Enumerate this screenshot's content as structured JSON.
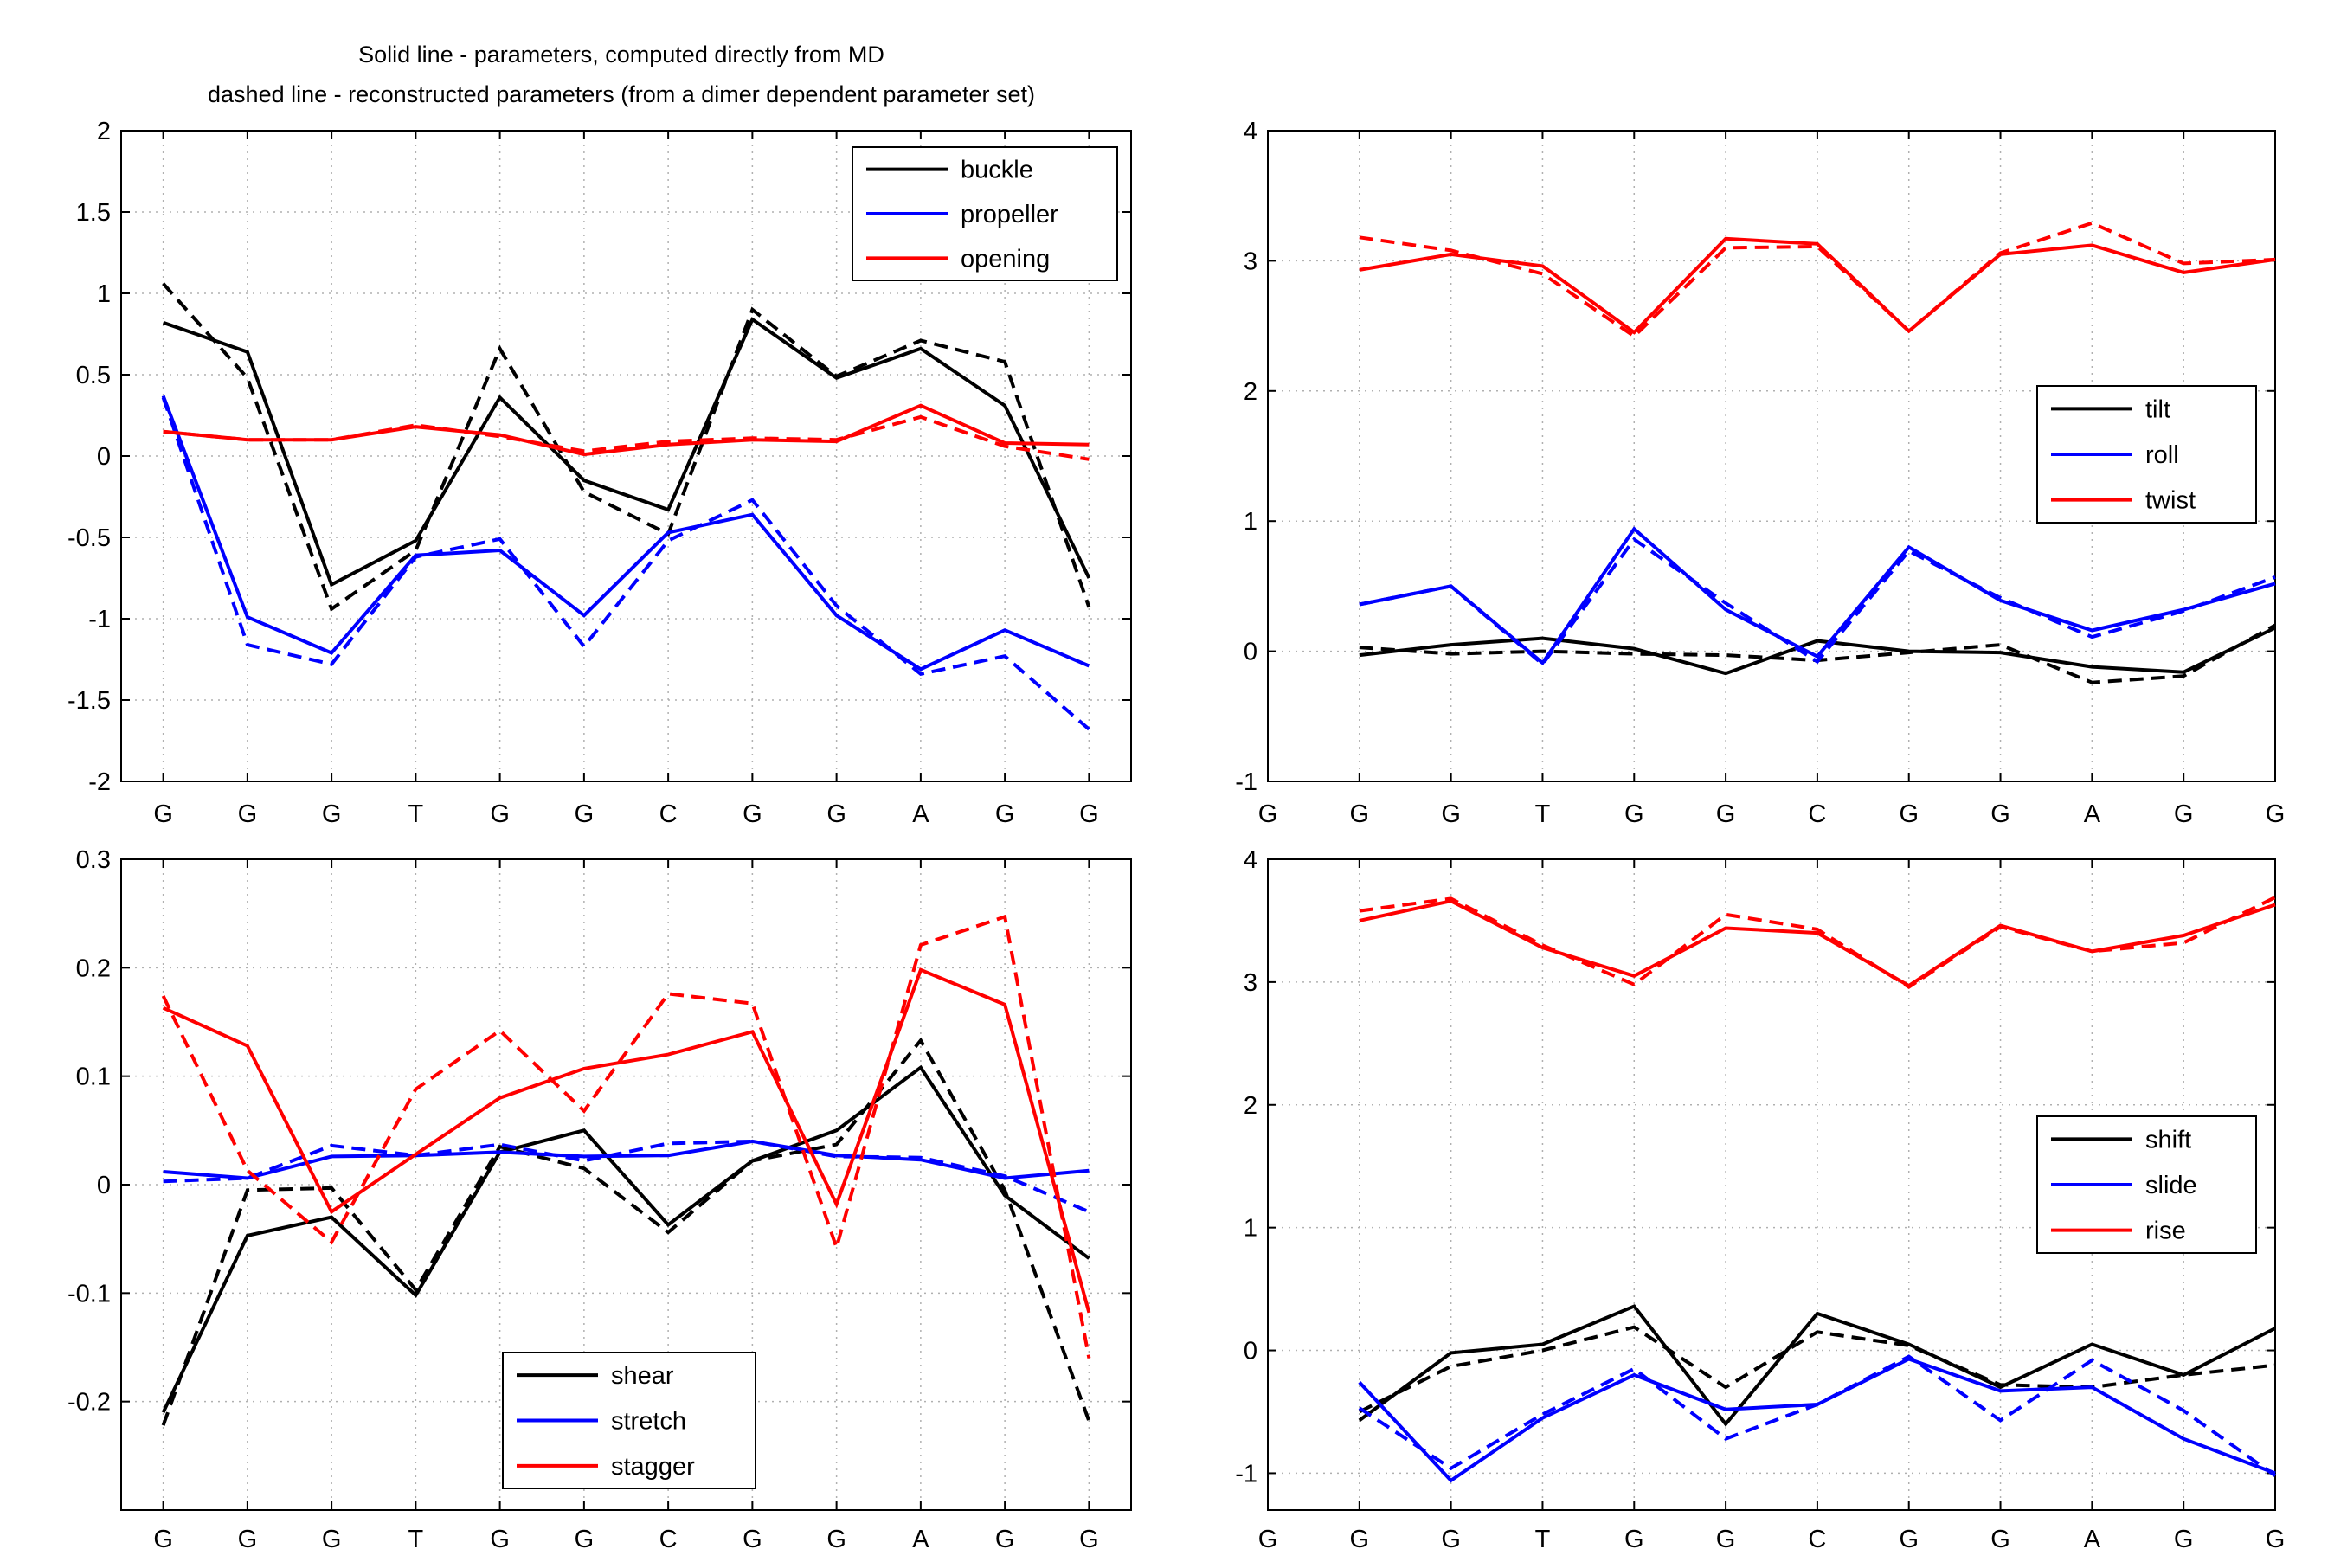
{
  "figure": {
    "title_lines": [
      "Solid line - parameters, computed directly from MD",
      "dashed line - reconstructed parameters (from a dimer dependent parameter set)"
    ]
  },
  "legend_styles": {
    "solid": "parameters, computed directly from MD",
    "dashed": "reconstructed parameters (from a dimer dependent parameter set)"
  },
  "chart_data": [
    {
      "type": "line",
      "id": "top-left",
      "categories": [
        "G",
        "G",
        "G",
        "T",
        "G",
        "G",
        "C",
        "G",
        "G",
        "A",
        "G",
        "G"
      ],
      "ylim": [
        -2,
        2
      ],
      "yticks": [
        -2,
        -1.5,
        -1,
        -0.5,
        0,
        0.5,
        1,
        1.5,
        2
      ],
      "ytick_labels": [
        "-2",
        "-1.5",
        "-1",
        "-0.5",
        "0",
        "0.5",
        "1",
        "1.5",
        "2"
      ],
      "x_index_range": [
        -0.5,
        11.5
      ],
      "grid": true,
      "legend_position": "top-right",
      "series": [
        {
          "name": "buckle",
          "color": "#000000",
          "style": "solid",
          "x": [
            0,
            1,
            2,
            3,
            4,
            5,
            6,
            7,
            8,
            9,
            10,
            11
          ],
          "values": [
            0.82,
            0.64,
            -0.79,
            -0.52,
            0.36,
            -0.15,
            -0.33,
            0.84,
            0.48,
            0.66,
            0.31,
            -0.75
          ]
        },
        {
          "name": "buckle",
          "color": "#000000",
          "style": "dashed",
          "legend": false,
          "x": [
            0,
            1,
            2,
            3,
            4,
            5,
            6,
            7,
            8,
            9,
            10,
            11
          ],
          "values": [
            1.06,
            0.48,
            -0.94,
            -0.58,
            0.66,
            -0.22,
            -0.48,
            0.9,
            0.49,
            0.71,
            0.58,
            -0.93
          ]
        },
        {
          "name": "propeller",
          "color": "#0000ff",
          "style": "solid",
          "x": [
            0,
            1,
            2,
            3,
            4,
            5,
            6,
            7,
            8,
            9,
            10,
            11
          ],
          "values": [
            0.37,
            -0.99,
            -1.21,
            -0.61,
            -0.58,
            -0.98,
            -0.47,
            -0.36,
            -0.98,
            -1.31,
            -1.07,
            -1.29
          ]
        },
        {
          "name": "propeller",
          "color": "#0000ff",
          "style": "dashed",
          "legend": false,
          "x": [
            0,
            1,
            2,
            3,
            4,
            5,
            6,
            7,
            8,
            9,
            10,
            11
          ],
          "values": [
            0.36,
            -1.16,
            -1.28,
            -0.62,
            -0.51,
            -1.17,
            -0.52,
            -0.27,
            -0.92,
            -1.34,
            -1.23,
            -1.68
          ]
        },
        {
          "name": "opening",
          "color": "#ff0000",
          "style": "solid",
          "x": [
            0,
            1,
            2,
            3,
            4,
            5,
            6,
            7,
            8,
            9,
            10,
            11
          ],
          "values": [
            0.15,
            0.1,
            0.1,
            0.18,
            0.13,
            0.01,
            0.07,
            0.1,
            0.09,
            0.31,
            0.08,
            0.07
          ]
        },
        {
          "name": "opening",
          "color": "#ff0000",
          "style": "dashed",
          "legend": false,
          "x": [
            0,
            1,
            2,
            3,
            4,
            5,
            6,
            7,
            8,
            9,
            10,
            11
          ],
          "values": [
            0.15,
            0.1,
            0.1,
            0.19,
            0.12,
            0.03,
            0.09,
            0.11,
            0.1,
            0.24,
            0.06,
            -0.02
          ]
        }
      ]
    },
    {
      "type": "line",
      "id": "top-right",
      "categories": [
        "G",
        "G",
        "G",
        "T",
        "G",
        "G",
        "C",
        "G",
        "G",
        "A",
        "G",
        "G"
      ],
      "ylim": [
        -1,
        4
      ],
      "yticks": [
        -1,
        0,
        1,
        2,
        3,
        4
      ],
      "ytick_labels": [
        "-1",
        "0",
        "1",
        "2",
        "3",
        "4"
      ],
      "x_index_range": [
        0,
        11
      ],
      "grid": true,
      "legend_position": "middle-right",
      "series": [
        {
          "name": "tilt",
          "color": "#000000",
          "style": "solid",
          "x": [
            1,
            2,
            3,
            4,
            5,
            6,
            7,
            8,
            9,
            10,
            11
          ],
          "values": [
            -0.03,
            0.05,
            0.1,
            0.02,
            -0.17,
            0.08,
            0,
            -0.01,
            -0.12,
            -0.16,
            0.18
          ]
        },
        {
          "name": "tilt",
          "color": "#000000",
          "style": "dashed",
          "legend": false,
          "x": [
            1,
            2,
            3,
            4,
            5,
            6,
            7,
            8,
            9,
            10,
            11
          ],
          "values": [
            0.03,
            -0.02,
            0,
            -0.02,
            -0.03,
            -0.07,
            -0.01,
            0.05,
            -0.24,
            -0.19,
            0.2
          ]
        },
        {
          "name": "roll",
          "color": "#0000ff",
          "style": "solid",
          "x": [
            1,
            2,
            3,
            4,
            5,
            6,
            7,
            8,
            9,
            10,
            11
          ],
          "values": [
            0.36,
            0.5,
            -0.09,
            0.94,
            0.32,
            -0.04,
            0.8,
            0.39,
            0.16,
            0.32,
            0.52
          ]
        },
        {
          "name": "roll",
          "color": "#0000ff",
          "style": "dashed",
          "legend": false,
          "x": [
            1,
            2,
            3,
            4,
            5,
            6,
            7,
            8,
            9,
            10,
            11
          ],
          "values": [
            0.36,
            0.5,
            -0.1,
            0.86,
            0.37,
            -0.08,
            0.77,
            0.41,
            0.11,
            0.31,
            0.57
          ]
        },
        {
          "name": "twist",
          "color": "#ff0000",
          "style": "solid",
          "x": [
            1,
            2,
            3,
            4,
            5,
            6,
            7,
            8,
            9,
            10,
            11
          ],
          "values": [
            2.93,
            3.05,
            2.96,
            2.45,
            3.17,
            3.13,
            2.46,
            3.05,
            3.12,
            2.91,
            3.01
          ]
        },
        {
          "name": "twist",
          "color": "#ff0000",
          "style": "dashed",
          "legend": false,
          "x": [
            1,
            2,
            3,
            4,
            5,
            6,
            7,
            8,
            9,
            10,
            11
          ],
          "values": [
            3.18,
            3.08,
            2.9,
            2.42,
            3.1,
            3.11,
            2.46,
            3.06,
            3.29,
            2.98,
            3.01
          ]
        }
      ]
    },
    {
      "type": "line",
      "id": "bottom-left",
      "categories": [
        "G",
        "G",
        "G",
        "T",
        "G",
        "G",
        "C",
        "G",
        "G",
        "A",
        "G",
        "G"
      ],
      "ylim": [
        -0.3,
        0.3
      ],
      "yticks": [
        -0.2,
        -0.1,
        0,
        0.1,
        0.2,
        0.3
      ],
      "ytick_labels": [
        "-0.2",
        "-0.1",
        "0",
        "0.1",
        "0.2",
        "0.3"
      ],
      "x_index_range": [
        -0.5,
        11.5
      ],
      "grid": true,
      "legend_position": "bottom-center",
      "series": [
        {
          "name": "shear",
          "color": "#000000",
          "style": "solid",
          "x": [
            0,
            1,
            2,
            3,
            4,
            5,
            6,
            7,
            8,
            9,
            10,
            11
          ],
          "values": [
            -0.21,
            -0.047,
            -0.03,
            -0.102,
            0.03,
            0.05,
            -0.037,
            0.022,
            0.05,
            0.108,
            -0.01,
            -0.068
          ]
        },
        {
          "name": "shear",
          "color": "#000000",
          "style": "dashed",
          "legend": false,
          "x": [
            0,
            1,
            2,
            3,
            4,
            5,
            6,
            7,
            8,
            9,
            10,
            11
          ],
          "values": [
            -0.222,
            -0.005,
            -0.003,
            -0.097,
            0.035,
            0.015,
            -0.044,
            0.022,
            0.037,
            0.133,
            -0.005,
            -0.218
          ]
        },
        {
          "name": "stretch",
          "color": "#0000ff",
          "style": "solid",
          "x": [
            0,
            1,
            2,
            3,
            4,
            5,
            6,
            7,
            8,
            9,
            10,
            11
          ],
          "values": [
            0.012,
            0.006,
            0.026,
            0.027,
            0.03,
            0.026,
            0.027,
            0.04,
            0.027,
            0.023,
            0.006,
            0.013
          ]
        },
        {
          "name": "stretch",
          "color": "#0000ff",
          "style": "dashed",
          "legend": false,
          "x": [
            0,
            1,
            2,
            3,
            4,
            5,
            6,
            7,
            8,
            9,
            10,
            11
          ],
          "values": [
            0.003,
            0.006,
            0.036,
            0.027,
            0.037,
            0.022,
            0.038,
            0.04,
            0.026,
            0.025,
            0.008,
            -0.025
          ]
        },
        {
          "name": "stagger",
          "color": "#ff0000",
          "style": "solid",
          "x": [
            0,
            1,
            2,
            3,
            4,
            5,
            6,
            7,
            8,
            9,
            10,
            11
          ],
          "values": [
            0.163,
            0.128,
            -0.025,
            0.028,
            0.08,
            0.107,
            0.12,
            0.141,
            -0.018,
            0.198,
            0.166,
            -0.118
          ]
        },
        {
          "name": "stagger",
          "color": "#ff0000",
          "style": "dashed",
          "legend": false,
          "x": [
            0,
            1,
            2,
            3,
            4,
            5,
            6,
            7,
            8,
            9,
            10,
            11
          ],
          "values": [
            0.174,
            0.013,
            -0.053,
            0.088,
            0.142,
            0.068,
            0.176,
            0.167,
            -0.058,
            0.221,
            0.247,
            -0.16
          ]
        }
      ]
    },
    {
      "type": "line",
      "id": "bottom-right",
      "categories": [
        "G",
        "G",
        "G",
        "T",
        "G",
        "G",
        "C",
        "G",
        "G",
        "A",
        "G",
        "G"
      ],
      "ylim": [
        -1.3,
        4
      ],
      "yticks": [
        -1,
        0,
        1,
        2,
        3,
        4
      ],
      "ytick_labels": [
        "-1",
        "0",
        "1",
        "2",
        "3",
        "4"
      ],
      "x_index_range": [
        0,
        11
      ],
      "grid": true,
      "legend_position": "middle-right",
      "series": [
        {
          "name": "shift",
          "color": "#000000",
          "style": "solid",
          "x": [
            1,
            2,
            3,
            4,
            5,
            6,
            7,
            8,
            9,
            10,
            11
          ],
          "values": [
            -0.57,
            -0.02,
            0.05,
            0.36,
            -0.6,
            0.3,
            0.05,
            -0.3,
            0.05,
            -0.2,
            0.18
          ]
        },
        {
          "name": "shift",
          "color": "#000000",
          "style": "dashed",
          "legend": false,
          "x": [
            1,
            2,
            3,
            4,
            5,
            6,
            7,
            8,
            9,
            10,
            11
          ],
          "values": [
            -0.5,
            -0.13,
            0,
            0.19,
            -0.3,
            0.15,
            0.04,
            -0.28,
            -0.3,
            -0.2,
            -0.12
          ]
        },
        {
          "name": "slide",
          "color": "#0000ff",
          "style": "solid",
          "x": [
            1,
            2,
            3,
            4,
            5,
            6,
            7,
            8,
            9,
            10,
            11
          ],
          "values": [
            -0.26,
            -1.06,
            -0.55,
            -0.2,
            -0.48,
            -0.44,
            -0.07,
            -0.33,
            -0.3,
            -0.72,
            -1
          ]
        },
        {
          "name": "slide",
          "color": "#0000ff",
          "style": "dashed",
          "legend": false,
          "x": [
            1,
            2,
            3,
            4,
            5,
            6,
            7,
            8,
            9,
            10,
            11
          ],
          "values": [
            -0.47,
            -0.96,
            -0.52,
            -0.15,
            -0.72,
            -0.44,
            -0.05,
            -0.57,
            -0.08,
            -0.49,
            -1.02
          ]
        },
        {
          "name": "rise",
          "color": "#ff0000",
          "style": "solid",
          "x": [
            1,
            2,
            3,
            4,
            5,
            6,
            7,
            8,
            9,
            10,
            11
          ],
          "values": [
            3.5,
            3.66,
            3.28,
            3.05,
            3.44,
            3.4,
            2.97,
            3.46,
            3.25,
            3.38,
            3.63
          ]
        },
        {
          "name": "rise",
          "color": "#ff0000",
          "style": "dashed",
          "legend": false,
          "x": [
            1,
            2,
            3,
            4,
            5,
            6,
            7,
            8,
            9,
            10,
            11
          ],
          "values": [
            3.58,
            3.68,
            3.3,
            2.98,
            3.55,
            3.43,
            2.96,
            3.45,
            3.25,
            3.32,
            3.69
          ]
        }
      ]
    }
  ]
}
